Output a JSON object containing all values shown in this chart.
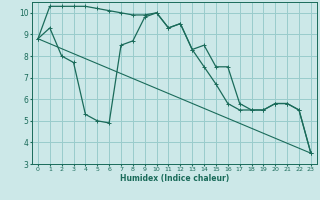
{
  "xlabel": "Humidex (Indice chaleur)",
  "xlim": [
    -0.5,
    23.5
  ],
  "ylim": [
    3,
    10.5
  ],
  "yticks": [
    3,
    4,
    5,
    6,
    7,
    8,
    9,
    10
  ],
  "xticks": [
    0,
    1,
    2,
    3,
    4,
    5,
    6,
    7,
    8,
    9,
    10,
    11,
    12,
    13,
    14,
    15,
    16,
    17,
    18,
    19,
    20,
    21,
    22,
    23
  ],
  "bg_color": "#cce8e8",
  "grid_color": "#99cccc",
  "line_color": "#1a6b5a",
  "line1_x": [
    0,
    1,
    2,
    3,
    4,
    5,
    6,
    7,
    8,
    9,
    10,
    11,
    12,
    13,
    14,
    15,
    16,
    17,
    18,
    19,
    20,
    21,
    22,
    23
  ],
  "line1_y": [
    8.8,
    10.3,
    10.3,
    10.3,
    10.3,
    10.2,
    10.1,
    10.0,
    9.9,
    9.9,
    10.0,
    9.3,
    9.5,
    8.3,
    8.5,
    7.5,
    7.5,
    5.8,
    5.5,
    5.5,
    5.8,
    5.8,
    5.5,
    3.5
  ],
  "line2_x": [
    0,
    1,
    2,
    3,
    4,
    5,
    6,
    7,
    8,
    9,
    10,
    11,
    12,
    13,
    14,
    15,
    16,
    17,
    18,
    19,
    20,
    21,
    22,
    23
  ],
  "line2_y": [
    8.8,
    9.3,
    8.0,
    7.7,
    5.3,
    5.0,
    4.9,
    8.5,
    8.7,
    9.8,
    10.0,
    9.3,
    9.5,
    8.3,
    7.5,
    6.7,
    5.8,
    5.5,
    5.5,
    5.5,
    5.8,
    5.8,
    5.5,
    3.5
  ],
  "line3_x": [
    0,
    23
  ],
  "line3_y": [
    8.8,
    3.5
  ]
}
